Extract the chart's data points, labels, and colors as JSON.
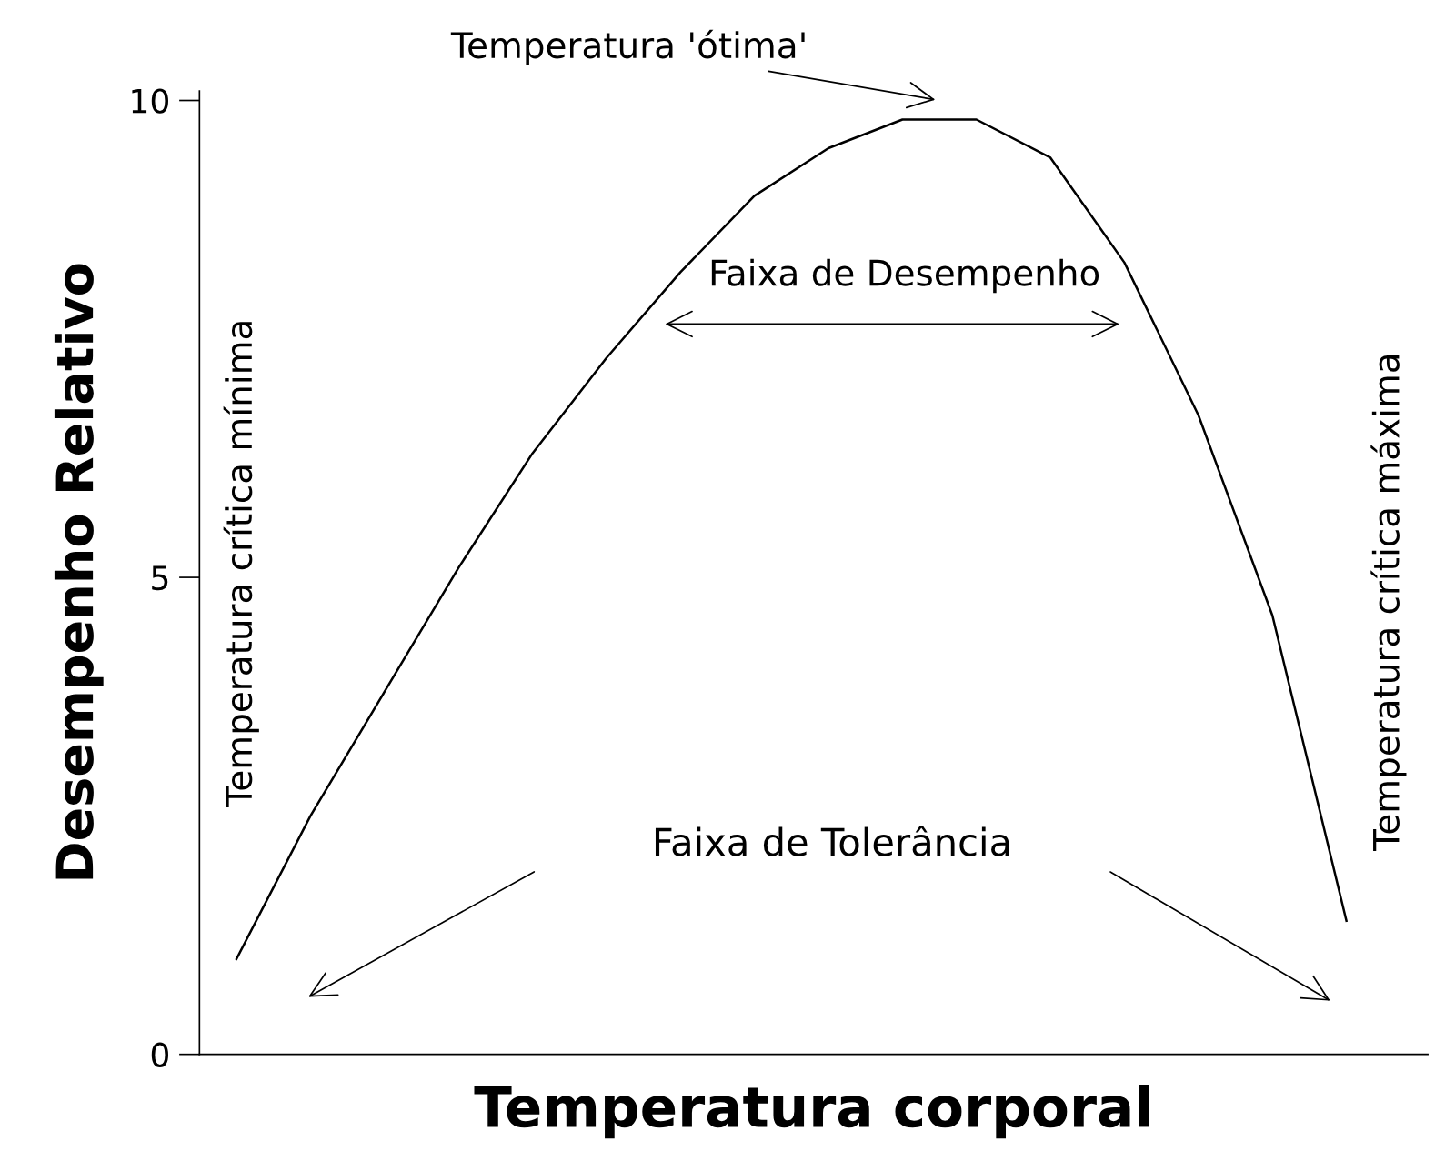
{
  "chart_data": {
    "type": "line",
    "xlabel": "Temperatura corporal",
    "ylabel": "Desempenho Relativo",
    "categories": [
      null,
      null,
      null,
      null,
      null,
      null,
      null,
      null,
      null,
      null,
      null,
      null,
      null,
      null,
      null,
      null
    ],
    "series": [
      {
        "color": "#000000",
        "values": [
          1.0,
          2.5,
          3.8,
          5.1,
          6.3,
          7.3,
          8.2,
          9.0,
          9.5,
          9.8,
          9.8,
          9.4,
          8.3,
          6.7,
          4.6,
          1.4
        ]
      }
    ],
    "ylim": [
      0,
      10.1
    ],
    "yticks": [
      0,
      5,
      10
    ],
    "tick_labels": "y",
    "grid": false,
    "legend": false,
    "marker": "none",
    "line_style": "solid",
    "annotations": [
      "Temperatura 'ótima'",
      "Faixa de Desempenho",
      "Faixa de Tolerância",
      "Temperatura crítica mínima",
      "Temperatura crítica máxima"
    ]
  }
}
